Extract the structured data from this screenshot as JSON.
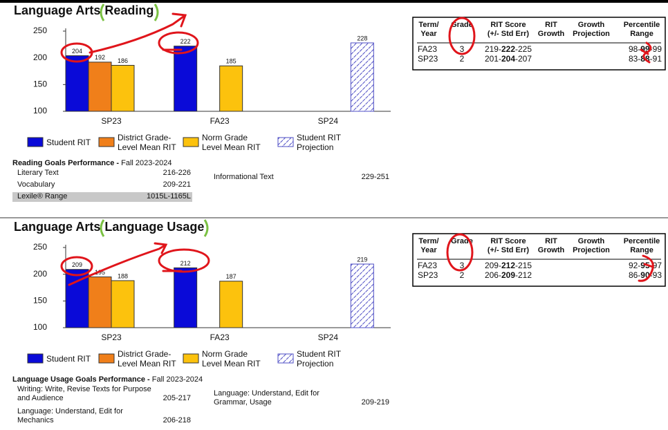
{
  "chart_data": [
    {
      "type": "bar",
      "categories": [
        "SP23",
        "FA23",
        "SP24"
      ],
      "series": [
        {
          "name": "Student RIT",
          "color": "#0a0ad8",
          "values": [
            204,
            222,
            null
          ]
        },
        {
          "name": "District Grade-Level Mean RIT",
          "color": "#f07f1a",
          "values": [
            192,
            null,
            null
          ]
        },
        {
          "name": "Norm Grade Level Mean RIT",
          "color": "#fcc20d",
          "values": [
            186,
            185,
            null
          ]
        },
        {
          "name": "Student RIT Projection",
          "color": "#4c4cc4",
          "hatch": true,
          "values": [
            null,
            null,
            228
          ]
        }
      ],
      "ylim": [
        100,
        250
      ],
      "yticks": [
        100,
        150,
        200,
        250
      ]
    },
    {
      "type": "bar",
      "categories": [
        "SP23",
        "FA23",
        "SP24"
      ],
      "series": [
        {
          "name": "Student RIT",
          "color": "#0a0ad8",
          "values": [
            209,
            212,
            null
          ]
        },
        {
          "name": "District Grade-Level Mean RIT",
          "color": "#f07f1a",
          "values": [
            195,
            null,
            null
          ]
        },
        {
          "name": "Norm Grade Level Mean RIT",
          "color": "#fcc20d",
          "values": [
            188,
            187,
            null
          ]
        },
        {
          "name": "Student RIT Projection",
          "color": "#4c4cc4",
          "hatch": true,
          "values": [
            null,
            null,
            219
          ]
        }
      ],
      "ylim": [
        100,
        250
      ],
      "yticks": [
        100,
        150,
        200,
        250
      ]
    }
  ],
  "panels": [
    {
      "title": "Language Arts",
      "subject": "Reading",
      "table": {
        "headers": [
          [
            "Term/",
            "Year"
          ],
          [
            "Grade"
          ],
          [
            "RIT Score",
            "(+/- Std Err)"
          ],
          [
            "RIT",
            "Growth"
          ],
          [
            "Growth",
            "Projection"
          ],
          [
            "Percentile",
            "Range"
          ]
        ],
        "rows": [
          {
            "term": "FA23",
            "grade": "3",
            "rit": [
              "219-",
              "222",
              "-225"
            ],
            "percentile": [
              "98-",
              "99",
              "-99"
            ]
          },
          {
            "term": "SP23",
            "grade": "2",
            "rit": [
              "201-",
              "204",
              "-207"
            ],
            "percentile": [
              "83-",
              "88",
              "-91"
            ]
          }
        ]
      },
      "goals": {
        "heading": "Reading Goals Performance - ",
        "period": "Fall 2023-2024",
        "left": [
          {
            "name": "Literary Text",
            "range": "216-226"
          },
          {
            "name": "Vocabulary",
            "range": "209-221"
          },
          {
            "name": "Lexile® Range",
            "range": "1015L-1165L",
            "highlight": true
          }
        ],
        "right": [
          {
            "name": "Informational Text",
            "range": "229-251"
          }
        ]
      }
    },
    {
      "title": "Language Arts",
      "subject": "Language Usage",
      "table": {
        "headers": [
          [
            "Term/",
            "Year"
          ],
          [
            "Grade"
          ],
          [
            "RIT Score",
            "(+/- Std Err)"
          ],
          [
            "RIT",
            "Growth"
          ],
          [
            "Growth",
            "Projection"
          ],
          [
            "Percentile",
            "Range"
          ]
        ],
        "rows": [
          {
            "term": "FA23",
            "grade": "3",
            "rit": [
              "209-",
              "212",
              "-215"
            ],
            "percentile": [
              "92-",
              "95",
              "-97"
            ]
          },
          {
            "term": "SP23",
            "grade": "2",
            "rit": [
              "206-",
              "209",
              "-212"
            ],
            "percentile": [
              "86-",
              "90",
              "-93"
            ]
          }
        ]
      },
      "goals": {
        "heading": "Language Usage Goals Performance - ",
        "period": "Fall 2023-2024",
        "left": [
          {
            "name": "Writing: Write, Revise Texts for Purpose and Audience",
            "range": "205-217"
          },
          {
            "name": "Language: Understand, Edit for Mechanics",
            "range": "206-218"
          }
        ],
        "right": [
          {
            "name": "Language: Understand, Edit for Grammar, Usage",
            "range": "209-219"
          }
        ]
      }
    }
  ]
}
